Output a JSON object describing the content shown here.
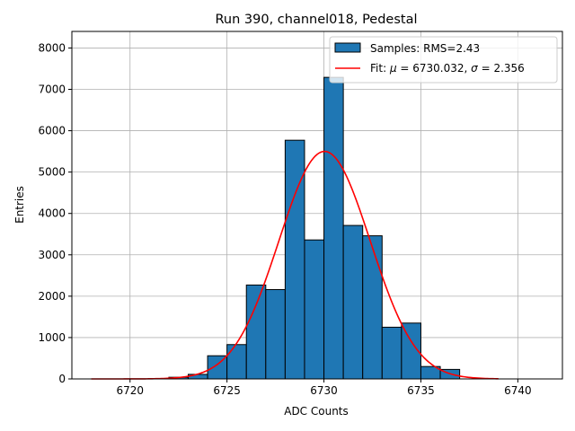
{
  "chart_data": {
    "type": "histogram",
    "title": "Run 390, channel018, Pedestal",
    "xlabel": "ADC Counts",
    "ylabel": "Entries",
    "xlim": [
      6717.0,
      6742.3
    ],
    "ylim": [
      0,
      8400
    ],
    "xticks": [
      6720,
      6725,
      6730,
      6735,
      6740
    ],
    "yticks": [
      0,
      1000,
      2000,
      3000,
      4000,
      5000,
      6000,
      7000,
      8000
    ],
    "grid": true,
    "legend_position": "top-right",
    "histogram": {
      "name": "Samples: RMS=2.43",
      "color": "#1f77b4",
      "edge_color": "#000000",
      "bins": [
        {
          "x0": 6722.0,
          "x1": 6723.0,
          "count": 40
        },
        {
          "x0": 6723.0,
          "x1": 6724.0,
          "count": 110
        },
        {
          "x0": 6724.0,
          "x1": 6725.0,
          "count": 560
        },
        {
          "x0": 6725.0,
          "x1": 6726.0,
          "count": 830
        },
        {
          "x0": 6726.0,
          "x1": 6727.0,
          "count": 2270
        },
        {
          "x0": 6727.0,
          "x1": 6728.0,
          "count": 2160
        },
        {
          "x0": 6728.0,
          "x1": 6729.0,
          "count": 5770
        },
        {
          "x0": 6729.0,
          "x1": 6730.0,
          "count": 3360
        },
        {
          "x0": 6730.0,
          "x1": 6731.0,
          "count": 7290
        },
        {
          "x0": 6731.0,
          "x1": 6732.0,
          "count": 3710
        },
        {
          "x0": 6732.0,
          "x1": 6733.0,
          "count": 3460
        },
        {
          "x0": 6733.0,
          "x1": 6734.0,
          "count": 1250
        },
        {
          "x0": 6734.0,
          "x1": 6735.0,
          "count": 1350
        },
        {
          "x0": 6735.0,
          "x1": 6736.0,
          "count": 300
        },
        {
          "x0": 6736.0,
          "x1": 6737.0,
          "count": 230
        }
      ]
    },
    "fit": {
      "name_prefix": "Fit: ",
      "mu_symbol": "μ",
      "sigma_symbol": "σ",
      "mu_text": " = 6730.032, ",
      "sigma_text": " = 2.356",
      "mu": 6730.032,
      "sigma": 2.356,
      "amplitude": 5500,
      "x_start": 6718.0,
      "x_end": 6739.0,
      "color": "#ff0000"
    }
  }
}
